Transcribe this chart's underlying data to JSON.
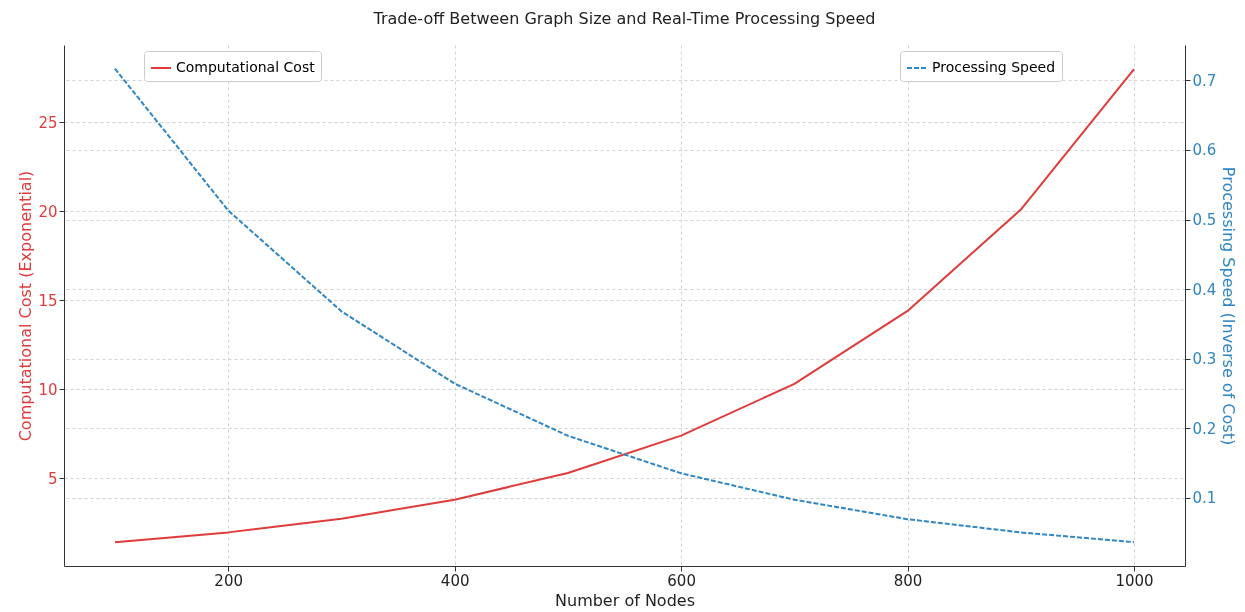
{
  "chart_data": {
    "type": "line",
    "title": "Trade-off Between Graph Size and Real-Time Processing Speed",
    "xlabel": "Number of Nodes",
    "ylabel": "Computational Cost (Exponential)",
    "y2label": "Processing Speed (Inverse of Cost)",
    "x": [
      100,
      200,
      300,
      400,
      500,
      600,
      700,
      800,
      900,
      1000
    ],
    "series": [
      {
        "name": "Computational Cost",
        "color": "#e03b3b",
        "line_style": "solid",
        "values": [
          1.39,
          1.95,
          2.72,
          3.79,
          5.29,
          7.39,
          10.3,
          14.4,
          20.1,
          28.0
        ]
      },
      {
        "name": "Processing Speed",
        "color": "#2f86c4",
        "line_style": "dashed",
        "axis": "y2",
        "values": [
          0.717,
          0.513,
          0.368,
          0.264,
          0.189,
          0.135,
          0.097,
          0.069,
          0.05,
          0.036
        ]
      }
    ],
    "xlim": [
      55,
      1045
    ],
    "xticks": [
      200,
      400,
      600,
      800,
      1000
    ],
    "ylim": [
      0.06,
      29.35
    ],
    "yticks": [
      5,
      10,
      15,
      20,
      25
    ],
    "y2lim": [
      0.0017,
      0.751
    ],
    "y2ticks": [
      0.1,
      0.2,
      0.3,
      0.4,
      0.5,
      0.6,
      0.7
    ],
    "grid": true,
    "legend": "top",
    "marker": "none"
  }
}
